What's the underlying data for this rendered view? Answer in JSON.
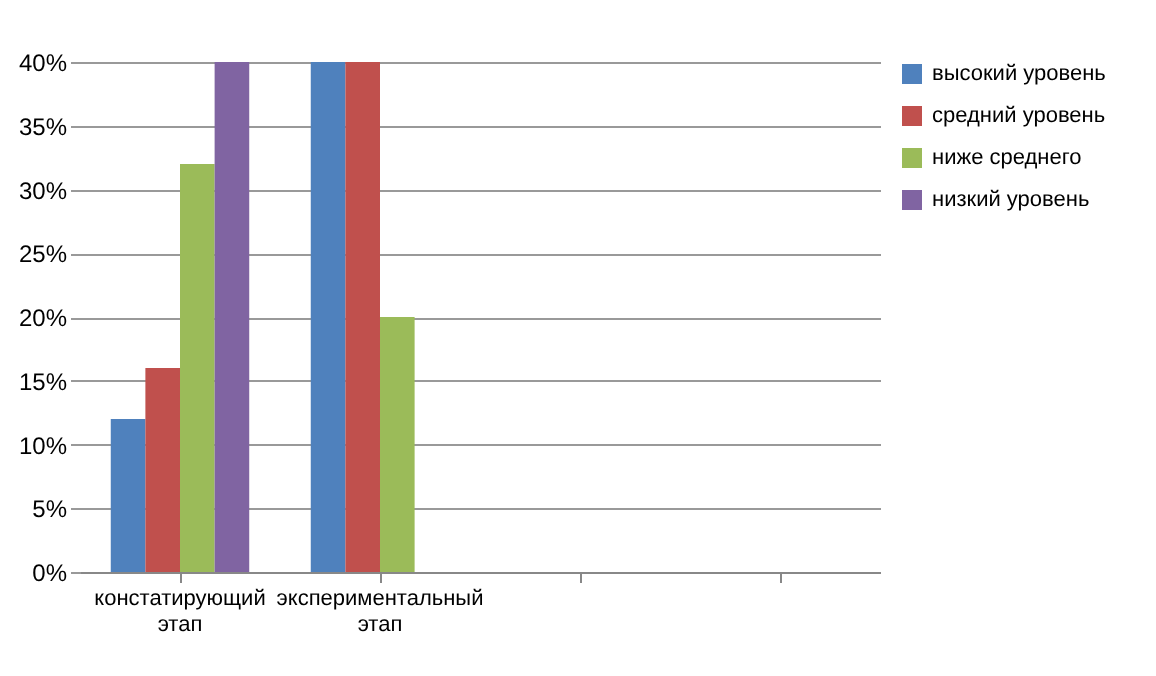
{
  "chart_data": {
    "type": "bar",
    "categories": [
      "констатирующий этап",
      "экспериментальный этап",
      null,
      null
    ],
    "series": [
      {
        "name": "высокий уровень",
        "color": "#4f81bd",
        "values": [
          12,
          40,
          null,
          null
        ]
      },
      {
        "name": "средний уровень",
        "color": "#c0504d",
        "values": [
          16,
          40,
          null,
          null
        ]
      },
      {
        "name": "ниже среднего",
        "color": "#9bbb59",
        "values": [
          32,
          20,
          null,
          null
        ]
      },
      {
        "name": "низкий уровень",
        "color": "#8064a2",
        "values": [
          40,
          0,
          null,
          null
        ]
      }
    ],
    "ylim": [
      0,
      40
    ],
    "yticks": [
      {
        "value": 0,
        "label": "0%"
      },
      {
        "value": 5,
        "label": "5%"
      },
      {
        "value": 10,
        "label": "10%"
      },
      {
        "value": 15,
        "label": "15%"
      },
      {
        "value": 20,
        "label": "20%"
      },
      {
        "value": 25,
        "label": "25%"
      },
      {
        "value": 30,
        "label": "30%"
      },
      {
        "value": 35,
        "label": "35%"
      },
      {
        "value": 40,
        "label": "40%"
      }
    ],
    "grid": "y",
    "legend": "right"
  }
}
